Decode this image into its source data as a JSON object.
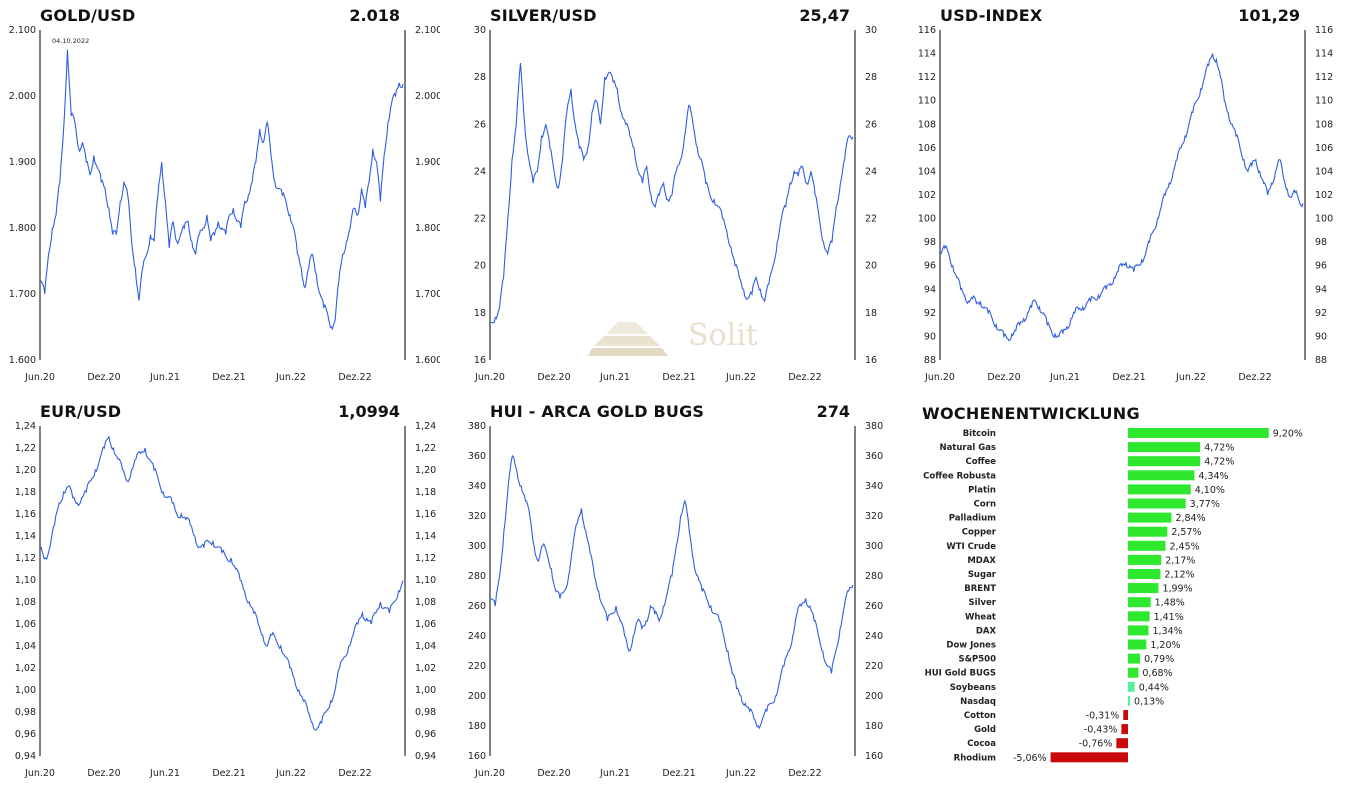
{
  "charts": [
    {
      "id": "gold",
      "title": "GOLD/USD",
      "last_value": "2.018",
      "annotation": "04.10.2022",
      "chart_data": {
        "type": "line",
        "ylim": [
          1600,
          2100
        ],
        "y_ticks": [
          "1.600",
          "1.700",
          "1.800",
          "1.900",
          "2.000",
          "2.100"
        ],
        "x_ticks": [
          "Jun.20",
          "Dez.20",
          "Jun.21",
          "Dez.21",
          "Jun.22",
          "Dez.22"
        ],
        "series": [
          {
            "values": [
              1720,
              1700,
              1760,
              1800,
              1820,
              1870,
              1950,
              2070,
              1970,
              1960,
              1920,
              1930,
              1900,
              1880,
              1910,
              1890,
              1870,
              1860,
              1830,
              1790,
              1790,
              1840,
              1870,
              1850,
              1780,
              1740,
              1690,
              1740,
              1760,
              1790,
              1780,
              1850,
              1900,
              1840,
              1770,
              1810,
              1780,
              1790,
              1800,
              1810,
              1780,
              1760,
              1790,
              1800,
              1820,
              1780,
              1790,
              1810,
              1800,
              1790,
              1820,
              1830,
              1810,
              1800,
              1840,
              1850,
              1870,
              1900,
              1950,
              1930,
              1960,
              1910,
              1870,
              1860,
              1850,
              1840,
              1820,
              1800,
              1760,
              1740,
              1710,
              1740,
              1760,
              1730,
              1700,
              1680,
              1670,
              1650,
              1660,
              1720,
              1760,
              1780,
              1800,
              1830,
              1820,
              1860,
              1830,
              1870,
              1920,
              1900,
              1840,
              1910,
              1960,
              1990,
              2000,
              2020,
              2018
            ]
          }
        ]
      }
    },
    {
      "id": "silver",
      "title": "SILVER/USD",
      "last_value": "25,47",
      "chart_data": {
        "type": "line",
        "ylim": [
          16,
          30
        ],
        "y_ticks": [
          "16",
          "18",
          "20",
          "22",
          "24",
          "26",
          "28",
          "30"
        ],
        "x_ticks": [
          "Jun.20",
          "Dez.20",
          "Jun.21",
          "Dez.21",
          "Jun.22",
          "Dez.22"
        ],
        "series": [
          {
            "values": [
              17.6,
              17.8,
              18.2,
              19.5,
              22,
              24.5,
              26,
              28.6,
              26,
              24.5,
              23.5,
              24,
              25.5,
              26,
              25,
              24,
              23.3,
              24.5,
              26.5,
              27.5,
              26,
              25,
              24.5,
              25,
              26.5,
              27,
              26,
              28,
              28.2,
              27.8,
              27.5,
              26.5,
              26,
              25.5,
              25,
              24,
              23.5,
              24.2,
              23,
              22.5,
              23,
              23.5,
              22.8,
              23,
              24,
              24.5,
              25.5,
              26.8,
              26,
              25,
              24.5,
              23.5,
              23,
              22.8,
              22.5,
              22,
              21.5,
              20.8,
              20,
              19.5,
              19,
              18.6,
              18.8,
              19.5,
              19,
              18.5,
              19.2,
              20,
              21,
              22,
              22.5,
              23.5,
              24,
              23.8,
              24.2,
              23.5,
              24,
              23,
              22,
              21,
              20.5,
              21,
              22.5,
              23.5,
              24.5,
              25.5,
              25.47
            ]
          }
        ]
      }
    },
    {
      "id": "usd-index",
      "title": "USD-INDEX",
      "last_value": "101,29",
      "chart_data": {
        "type": "line",
        "ylim": [
          88,
          116
        ],
        "y_ticks": [
          "88",
          "90",
          "92",
          "94",
          "96",
          "98",
          "100",
          "102",
          "104",
          "106",
          "108",
          "110",
          "112",
          "114",
          "116"
        ],
        "x_ticks": [
          "Jun.20",
          "Dez.20",
          "Jun.21",
          "Dez.21",
          "Jun.22",
          "Dez.22"
        ],
        "series": [
          {
            "values": [
              97,
              97.5,
              97,
              96,
              95,
              94,
              93.5,
              93,
              93.2,
              92.8,
              93,
              92.5,
              92,
              91.5,
              91,
              90.5,
              90,
              89.8,
              90.2,
              90.5,
              91,
              91.5,
              92,
              92.5,
              93,
              92.5,
              92,
              91,
              90.5,
              90.2,
              90,
              90.3,
              90.8,
              91.5,
              92,
              92.3,
              92.5,
              92.8,
              93,
              93.2,
              93.5,
              93.8,
              94,
              94.5,
              95,
              95.5,
              96,
              96.3,
              96,
              95.5,
              96,
              96.5,
              97,
              98,
              99,
              100,
              101,
              102,
              103,
              104,
              105,
              106,
              107,
              108,
              109,
              110,
              111,
              112,
              113,
              114,
              113.5,
              112,
              110,
              109,
              108,
              107,
              106,
              105,
              104,
              104.5,
              105,
              104,
              103,
              102,
              103,
              104,
              105,
              103.5,
              102.5,
              101.8,
              102.2,
              101.5,
              101.29
            ]
          }
        ]
      }
    },
    {
      "id": "eur-usd",
      "title": "EUR/USD",
      "last_value": "1,0994",
      "chart_data": {
        "type": "line",
        "ylim": [
          0.94,
          1.24
        ],
        "y_ticks": [
          "0,94",
          "0,96",
          "0,98",
          "1,00",
          "1,02",
          "1,04",
          "1,06",
          "1,08",
          "1,10",
          "1,12",
          "1,14",
          "1,16",
          "1,18",
          "1,20",
          "1,22",
          "1,24"
        ],
        "x_ticks": [
          "Jun.20",
          "Dez.20",
          "Jun.21",
          "Dez.21",
          "Jun.22",
          "Dez.22"
        ],
        "series": [
          {
            "values": [
              1.13,
              1.12,
              1.13,
              1.15,
              1.17,
              1.18,
              1.185,
              1.175,
              1.17,
              1.175,
              1.18,
              1.19,
              1.2,
              1.21,
              1.22,
              1.23,
              1.22,
              1.21,
              1.2,
              1.19,
              1.2,
              1.21,
              1.215,
              1.22,
              1.21,
              1.2,
              1.19,
              1.18,
              1.175,
              1.17,
              1.16,
              1.16,
              1.155,
              1.15,
              1.14,
              1.13,
              1.13,
              1.135,
              1.135,
              1.13,
              1.125,
              1.12,
              1.12,
              1.11,
              1.1,
              1.09,
              1.08,
              1.07,
              1.06,
              1.05,
              1.04,
              1.05,
              1.045,
              1.04,
              1.03,
              1.02,
              1.01,
              1.0,
              0.99,
              0.98,
              0.97,
              0.965,
              0.97,
              0.98,
              0.99,
              1.0,
              1.02,
              1.03,
              1.04,
              1.05,
              1.06,
              1.07,
              1.065,
              1.06,
              1.07,
              1.08,
              1.075,
              1.07,
              1.08,
              1.09,
              1.0994
            ]
          }
        ]
      }
    },
    {
      "id": "hui",
      "title": "HUI - ARCA GOLD BUGS",
      "last_value": "274",
      "chart_data": {
        "type": "line",
        "ylim": [
          160,
          380
        ],
        "y_ticks": [
          "160",
          "180",
          "200",
          "220",
          "240",
          "260",
          "280",
          "300",
          "320",
          "340",
          "360",
          "380"
        ],
        "x_ticks": [
          "Jun.20",
          "Dez.20",
          "Jun.21",
          "Dez.21",
          "Jun.22",
          "Dez.22"
        ],
        "series": [
          {
            "values": [
              265,
              260,
              280,
              310,
              340,
              360,
              350,
              340,
              330,
              320,
              300,
              290,
              300,
              295,
              285,
              270,
              265,
              270,
              280,
              300,
              315,
              325,
              310,
              295,
              280,
              270,
              260,
              250,
              255,
              260,
              250,
              240,
              230,
              240,
              250,
              245,
              250,
              260,
              255,
              250,
              260,
              270,
              280,
              300,
              320,
              330,
              310,
              290,
              280,
              270,
              265,
              260,
              255,
              250,
              240,
              230,
              215,
              205,
              200,
              195,
              190,
              185,
              180,
              185,
              190,
              195,
              200,
              210,
              220,
              230,
              240,
              255,
              260,
              265,
              260,
              250,
              240,
              230,
              220,
              215,
              230,
              245,
              260,
              270,
              274
            ]
          }
        ]
      }
    }
  ],
  "weekly": {
    "title": "WOCHENENTWICKLUNG",
    "colors": {
      "positive": "#2ee82e",
      "small_positive": "#55f099",
      "negative": "#c80a0a"
    },
    "items": [
      {
        "label": "Bitcoin",
        "value": 9.2,
        "text": "9,20%"
      },
      {
        "label": "Natural Gas",
        "value": 4.72,
        "text": "4,72%"
      },
      {
        "label": "Coffee",
        "value": 4.72,
        "text": "4,72%"
      },
      {
        "label": "Coffee Robusta",
        "value": 4.34,
        "text": "4,34%"
      },
      {
        "label": "Platin",
        "value": 4.1,
        "text": "4,10%"
      },
      {
        "label": "Corn",
        "value": 3.77,
        "text": "3,77%"
      },
      {
        "label": "Palladium",
        "value": 2.84,
        "text": "2,84%"
      },
      {
        "label": "Copper",
        "value": 2.57,
        "text": "2,57%"
      },
      {
        "label": "WTI Crude",
        "value": 2.45,
        "text": "2,45%"
      },
      {
        "label": "MDAX",
        "value": 2.17,
        "text": "2,17%"
      },
      {
        "label": "Sugar",
        "value": 2.12,
        "text": "2,12%"
      },
      {
        "label": "BRENT",
        "value": 1.99,
        "text": "1,99%"
      },
      {
        "label": "Silver",
        "value": 1.48,
        "text": "1,48%"
      },
      {
        "label": "Wheat",
        "value": 1.41,
        "text": "1,41%"
      },
      {
        "label": "DAX",
        "value": 1.34,
        "text": "1,34%"
      },
      {
        "label": "Dow Jones",
        "value": 1.2,
        "text": "1,20%"
      },
      {
        "label": "S&P500",
        "value": 0.79,
        "text": "0,79%"
      },
      {
        "label": "HUI Gold BUGS",
        "value": 0.68,
        "text": "0,68%"
      },
      {
        "label": "Soybeans",
        "value": 0.44,
        "text": "0,44%"
      },
      {
        "label": "Nasdaq",
        "value": 0.13,
        "text": "0,13%"
      },
      {
        "label": "Cotton",
        "value": -0.31,
        "text": "-0,31%"
      },
      {
        "label": "Gold",
        "value": -0.43,
        "text": "-0,43%"
      },
      {
        "label": "Cocoa",
        "value": -0.76,
        "text": "-0,76%"
      },
      {
        "label": "Rhodium",
        "value": -5.06,
        "text": "-5,06%"
      }
    ]
  },
  "watermark": {
    "text": "Solit"
  },
  "line_color": "#2f5fe0"
}
